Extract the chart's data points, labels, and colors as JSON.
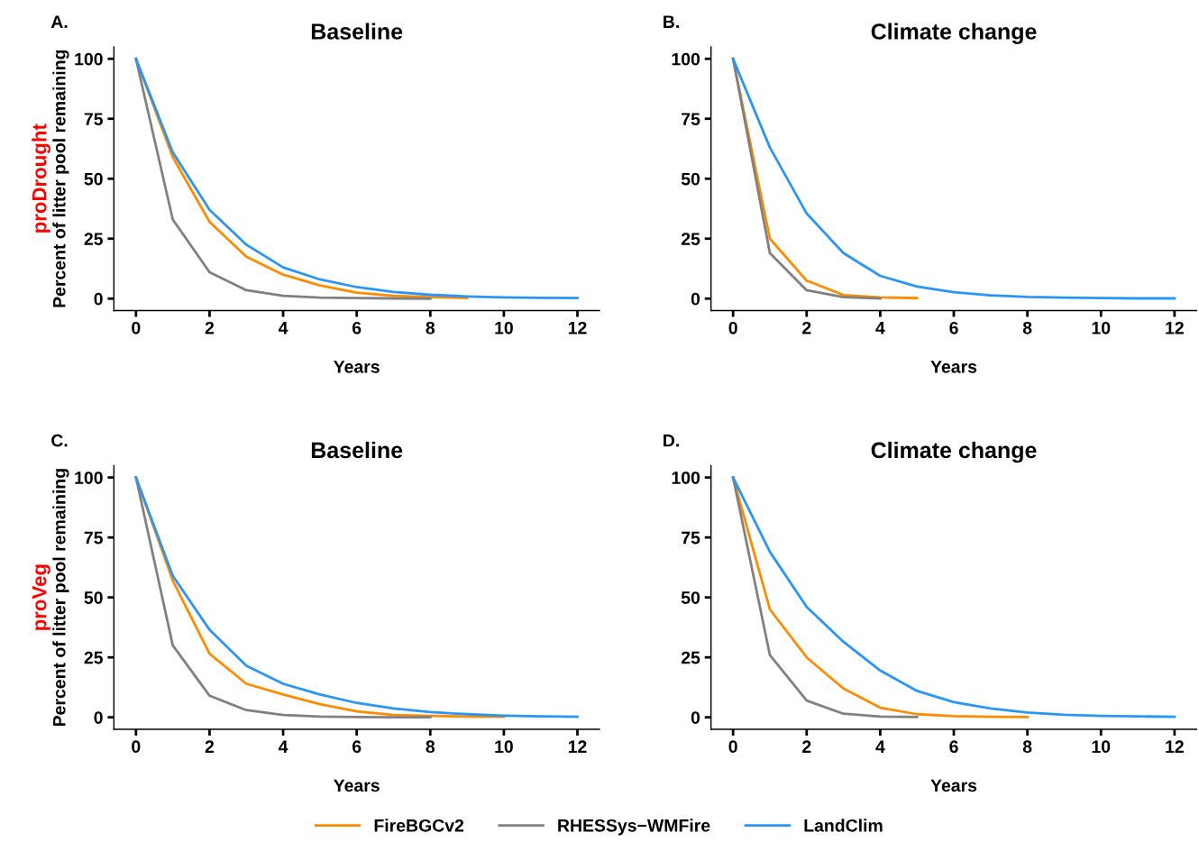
{
  "chart_data": [
    {
      "type": "line",
      "title": "Baseline",
      "xlabel": "Years",
      "ylabel": "Percent of litter pool remaining",
      "annotations": [
        "A.",
        "proDrought"
      ],
      "x": [
        0,
        1,
        2,
        3,
        4,
        5,
        6,
        7,
        8,
        9,
        10,
        11,
        12
      ],
      "xlim": [
        -0.6,
        12.6
      ],
      "xticks": [
        0,
        2,
        4,
        6,
        8,
        10,
        12
      ],
      "ylim": [
        -5,
        105
      ],
      "yticks": [
        0,
        25,
        50,
        75,
        100
      ],
      "grid": false,
      "legend": "bottom",
      "series": [
        {
          "name": "FireBGCv2",
          "color": "#ff8c00",
          "values": [
            100,
            59,
            32,
            17.5,
            10,
            5.5,
            2.5,
            1.2,
            0.6,
            0.3,
            null,
            null,
            null
          ]
        },
        {
          "name": "RHESSys−WMFire",
          "color": "#808080",
          "values": [
            100,
            33,
            11,
            3.5,
            1.2,
            0.4,
            0.2,
            0.1,
            0,
            null,
            null,
            null,
            null
          ]
        },
        {
          "name": "LandClim",
          "color": "#2b95f5",
          "values": [
            100,
            61,
            37,
            22.5,
            13,
            8,
            4.8,
            2.8,
            1.6,
            0.9,
            0.5,
            0.3,
            0.2
          ]
        }
      ]
    },
    {
      "type": "line",
      "title": "Climate change",
      "xlabel": "Years",
      "annotations": [
        "B."
      ],
      "x": [
        0,
        1,
        2,
        3,
        4,
        5,
        6,
        7,
        8,
        9,
        10,
        11,
        12
      ],
      "xlim": [
        -0.6,
        12.6
      ],
      "xticks": [
        0,
        2,
        4,
        6,
        8,
        10,
        12
      ],
      "ylim": [
        -5,
        105
      ],
      "yticks": [
        0,
        25,
        50,
        75,
        100
      ],
      "grid": false,
      "series": [
        {
          "color": "#ff8c00",
          "values": [
            100,
            25,
            7.5,
            1.5,
            0.5,
            0.2,
            null,
            null,
            null,
            null,
            null,
            null,
            null
          ]
        },
        {
          "color": "#808080",
          "values": [
            100,
            19,
            3.5,
            0.6,
            0.1,
            null,
            null,
            null,
            null,
            null,
            null,
            null,
            null
          ]
        },
        {
          "color": "#2b95f5",
          "values": [
            100,
            63,
            35.5,
            19,
            9.5,
            5,
            2.7,
            1.4,
            0.7,
            0.4,
            0.2,
            0.1,
            0.1
          ]
        }
      ]
    },
    {
      "type": "line",
      "title": "Baseline",
      "xlabel": "Years",
      "ylabel": "Percent of litter pool remaining",
      "annotations": [
        "C.",
        "proVeg"
      ],
      "x": [
        0,
        1,
        2,
        3,
        4,
        5,
        6,
        7,
        8,
        9,
        10,
        11,
        12
      ],
      "xlim": [
        -0.6,
        12.6
      ],
      "xticks": [
        0,
        2,
        4,
        6,
        8,
        10,
        12
      ],
      "ylim": [
        -5,
        105
      ],
      "yticks": [
        0,
        25,
        50,
        75,
        100
      ],
      "grid": false,
      "series": [
        {
          "color": "#ff8c00",
          "values": [
            100,
            57,
            26.5,
            14,
            9.5,
            5.5,
            2.5,
            1,
            0.6,
            0.3,
            0.2,
            null,
            null
          ]
        },
        {
          "color": "#808080",
          "values": [
            100,
            30,
            9,
            3,
            1,
            0.3,
            0.1,
            0,
            0,
            null,
            null,
            null,
            null
          ]
        },
        {
          "color": "#2b95f5",
          "values": [
            100,
            59,
            36.5,
            21.5,
            14,
            9.5,
            6,
            3.7,
            2.2,
            1.3,
            0.7,
            0.4,
            0.2
          ]
        }
      ]
    },
    {
      "type": "line",
      "title": "Climate change",
      "xlabel": "Years",
      "annotations": [
        "D."
      ],
      "x": [
        0,
        1,
        2,
        3,
        4,
        5,
        6,
        7,
        8,
        9,
        10,
        11,
        12
      ],
      "xlim": [
        -0.6,
        12.6
      ],
      "xticks": [
        0,
        2,
        4,
        6,
        8,
        10,
        12
      ],
      "ylim": [
        -5,
        105
      ],
      "yticks": [
        0,
        25,
        50,
        75,
        100
      ],
      "grid": false,
      "series": [
        {
          "color": "#ff8c00",
          "values": [
            100,
            45,
            25,
            12,
            4,
            1.3,
            0.5,
            0.2,
            0.1,
            null,
            null,
            null,
            null
          ]
        },
        {
          "color": "#808080",
          "values": [
            100,
            26,
            7,
            1.5,
            0.3,
            0.1,
            null,
            null,
            null,
            null,
            null,
            null,
            null
          ]
        },
        {
          "color": "#2b95f5",
          "values": [
            100,
            69,
            46,
            31.5,
            19.5,
            11,
            6.3,
            3.7,
            2,
            1.1,
            0.6,
            0.4,
            0.2
          ]
        }
      ]
    }
  ]
}
